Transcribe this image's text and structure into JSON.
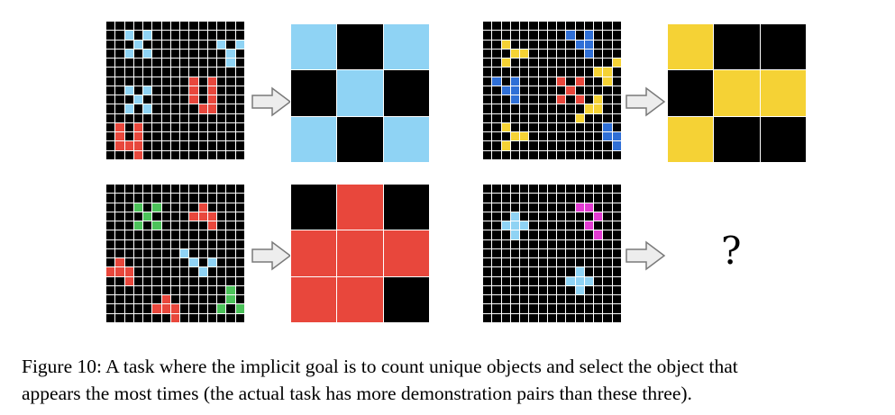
{
  "figure": {
    "colors": {
      "bg": "#000000",
      "line": "#ffffff",
      "palette": {
        "b": "#8fd3f4",
        "r": "#e8473c",
        "y": "#f5d235",
        "u": "#2f6fd6",
        "g": "#4cc25a",
        "m": "#e23bd1"
      }
    },
    "demos": [
      {
        "input": [
          "000000000000000",
          "00b0b0000000000",
          "000b00000000b0b",
          "00b0b00000000b0",
          "0000000000000b0b",
          "000000000000000",
          "000000000r0r000",
          "00b0b0000r0r000",
          "000b00000r0r000",
          "00b0b00000rr000",
          "000000000000000",
          "0r0r00000000000",
          "0r0r00000000000",
          "0rrr00000000000",
          "000r00000000000"
        ],
        "output": [
          "b0b",
          "0b0",
          "b0b"
        ]
      },
      {
        "input": [
          "000000000000000",
          "000000000u0u000",
          "00y0000000uu000",
          "000yy000000u000",
          "00y00000000000y",
          "000000000000yy0",
          "0u0u0000r0r00y0",
          "00uu00000r00000",
          "000u0000r0r0y00",
          "00000000000yy00",
          "0000000000y0000",
          "00y0000000000u0u",
          "000yy00000000uu0",
          "00y00000000000u0",
          "000000000000000"
        ],
        "output": [
          "y00",
          "0yy",
          "y00"
        ]
      },
      {
        "input": [
          "000000000000000",
          "000000000000000",
          "000g0g0000r0000",
          "0000g0000rrr000",
          "000g0g00000r000",
          "000000000000000",
          "000000000000000",
          "00000000b000000",
          "0r0000000b0b000",
          "rrr0000000b0000",
          "00r00000000000000",
          "0000000000000g0g",
          "000000r000000g00",
          "00000rrr0000g0g0",
          "0000000r00000000"
        ],
        "output": [
          "0r0",
          "rrr",
          "rr0"
        ]
      },
      {
        "input": [
          "000000000000000",
          "000000000000000",
          "0000000000mm000",
          "000b00000000m00",
          "00bbb000000m000",
          "000b00000000m00",
          "000000000000000",
          "000000000000000",
          "000000000000000",
          "0000000000b0000",
          "000000000bbb000",
          "0000000000b0000",
          "000000000000000",
          "000000000000000",
          "000000000000000"
        ],
        "output": null
      }
    ],
    "question_mark": "?"
  },
  "caption": {
    "line1": "Figure 10: A task where the implicit goal is to count unique objects and select the object that",
    "line2": "appears the most times (the actual task has more demonstration pairs than these three)."
  }
}
